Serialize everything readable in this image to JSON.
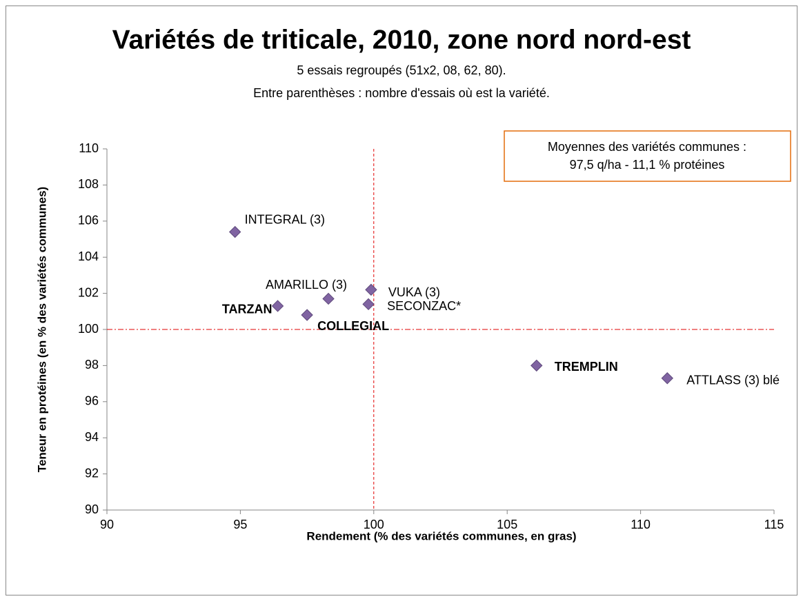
{
  "chart_data": {
    "type": "scatter",
    "title": "Variétés de triticale, 2010, zone nord nord-est",
    "subtitle": [
      "5 essais regroupés (51x2, 08, 62, 80).",
      "Entre parenthèses : nombre d'essais où est la variété."
    ],
    "annotation": [
      "Moyennes des variétés communes :",
      "97,5 q/ha  -  11,1 % protéines"
    ],
    "x_label": "Rendement (% des variétés communes, en gras)",
    "y_label": "Teneur en protéines (en % des variétés communes)",
    "xlim": [
      90,
      115
    ],
    "xticks": [
      90,
      95,
      100,
      105,
      110,
      115
    ],
    "ylim": [
      90,
      110
    ],
    "yticks": [
      90,
      92,
      94,
      96,
      98,
      100,
      102,
      104,
      106,
      108,
      110
    ],
    "color": "#8064a2",
    "reference_lines": {
      "x": 100,
      "y": 100,
      "color": "#e00000"
    },
    "points": [
      {
        "label": "INTEGRAL (3)",
        "x": 94.8,
        "y": 105.4,
        "bold": false
      },
      {
        "label": "TARZAN",
        "x": 96.4,
        "y": 101.3,
        "bold": true
      },
      {
        "label": "COLLEGIAL",
        "x": 97.5,
        "y": 100.8,
        "bold": true
      },
      {
        "label": "AMARILLO (3)",
        "x": 98.3,
        "y": 101.7,
        "bold": false
      },
      {
        "label": "VUKA (3)",
        "x": 99.9,
        "y": 102.2,
        "bold": false
      },
      {
        "label": "SECONZAC*",
        "x": 99.8,
        "y": 101.4,
        "bold": false
      },
      {
        "label": "TREMPLIN",
        "x": 106.1,
        "y": 98.0,
        "bold": true
      },
      {
        "label": "ATTLASS (3) blé",
        "x": 111.0,
        "y": 97.3,
        "bold": false
      }
    ]
  }
}
